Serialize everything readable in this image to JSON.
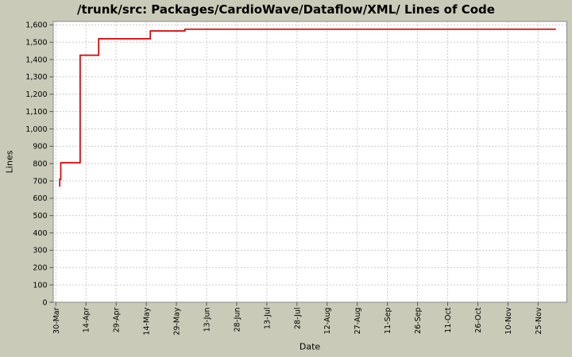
{
  "chart_data": {
    "type": "line",
    "step": "after",
    "title": "/trunk/src: Packages/CardioWave/Dataflow/XML/ Lines of Code",
    "xlabel": "Date",
    "ylabel": "Lines",
    "grid": true,
    "legend": "none",
    "colors": {
      "background": "#cacab8",
      "plot_background": "#ffffff",
      "plot_border": "#8a8a8a",
      "gridline": "#cccccc",
      "tick": "#555555",
      "text": "#000000",
      "line": "#dd0000"
    },
    "xlim_days": [
      -1.3,
      254.3
    ],
    "ylim": [
      0,
      1620
    ],
    "x_ticks": [
      {
        "label": "30-Mar",
        "day": 0
      },
      {
        "label": "14-Apr",
        "day": 15
      },
      {
        "label": "29-Apr",
        "day": 30
      },
      {
        "label": "14-May",
        "day": 45
      },
      {
        "label": "29-May",
        "day": 60
      },
      {
        "label": "13-Jun",
        "day": 75
      },
      {
        "label": "28-Jun",
        "day": 90
      },
      {
        "label": "13-Jul",
        "day": 105
      },
      {
        "label": "28-Jul",
        "day": 120
      },
      {
        "label": "12-Aug",
        "day": 135
      },
      {
        "label": "27-Aug",
        "day": 150
      },
      {
        "label": "11-Sep",
        "day": 165
      },
      {
        "label": "26-Sep",
        "day": 180
      },
      {
        "label": "11-Oct",
        "day": 195
      },
      {
        "label": "26-Oct",
        "day": 210
      },
      {
        "label": "10-Nov",
        "day": 225
      },
      {
        "label": "25-Nov",
        "day": 240
      }
    ],
    "y_ticks": [
      {
        "label": "0",
        "value": 0
      },
      {
        "label": "100",
        "value": 100
      },
      {
        "label": "200",
        "value": 200
      },
      {
        "label": "300",
        "value": 300
      },
      {
        "label": "400",
        "value": 400
      },
      {
        "label": "500",
        "value": 500
      },
      {
        "label": "600",
        "value": 600
      },
      {
        "label": "700",
        "value": 700
      },
      {
        "label": "800",
        "value": 800
      },
      {
        "label": "900",
        "value": 900
      },
      {
        "label": "1,000",
        "value": 1000
      },
      {
        "label": "1,100",
        "value": 1100
      },
      {
        "label": "1,200",
        "value": 1200
      },
      {
        "label": "1,300",
        "value": 1300
      },
      {
        "label": "1,400",
        "value": 1400
      },
      {
        "label": "1,500",
        "value": 1500
      },
      {
        "label": "1,600",
        "value": 1600
      }
    ],
    "series": [
      {
        "name": "Lines of Code",
        "color": "#dd0000",
        "points": [
          {
            "date": "31-Mar",
            "day": 1.66,
            "value": 670
          },
          {
            "date": "1-Apr",
            "day": 1.95,
            "value": 710
          },
          {
            "date": "1-Apr",
            "day": 2.45,
            "value": 805
          },
          {
            "date": "11-Apr",
            "day": 12.1,
            "value": 1425
          },
          {
            "date": "20-Apr",
            "day": 21.3,
            "value": 1520
          },
          {
            "date": "16-May",
            "day": 47.0,
            "value": 1565
          },
          {
            "date": "3-Jun",
            "day": 64.2,
            "value": 1575
          },
          {
            "date": "4-Dec",
            "day": 248.9,
            "value": 1575
          }
        ]
      }
    ]
  }
}
